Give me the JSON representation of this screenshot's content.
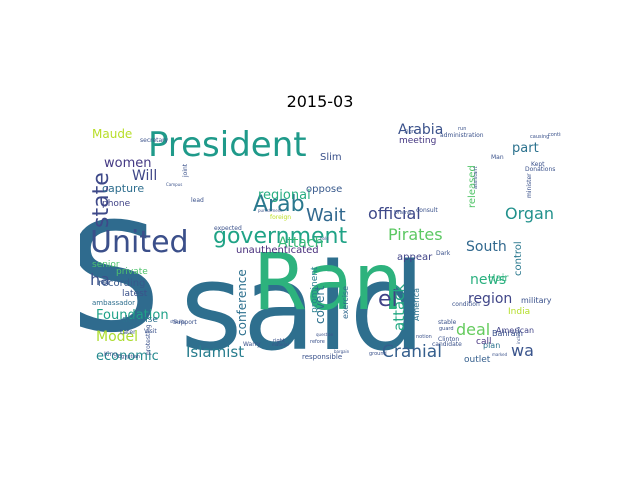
{
  "title": "2015-03",
  "words": [
    {
      "text": "said",
      "color": "#2e6f8e",
      "size": 120,
      "rot": 0
    },
    {
      "text": "S",
      "color": "#2f6b8e",
      "size": 150,
      "rot": 0
    },
    {
      "text": "Ran",
      "color": "#2db27d",
      "size": 78,
      "rot": 0
    },
    {
      "text": "President",
      "color": "#1f9a8a",
      "size": 34,
      "rot": 0
    },
    {
      "text": "United",
      "color": "#3b4f8a",
      "size": 30,
      "rot": 0
    },
    {
      "text": "government",
      "color": "#20a386",
      "size": 22,
      "rot": 0
    },
    {
      "text": "Arab",
      "color": "#2a788e",
      "size": 22,
      "rot": 0
    },
    {
      "text": "state",
      "color": "#3e4989",
      "size": 22,
      "rot": 270
    },
    {
      "text": "el",
      "color": "#404387",
      "size": 22,
      "rot": 0
    },
    {
      "text": "Wait",
      "color": "#31688e",
      "size": 18,
      "rot": 0
    },
    {
      "text": "official",
      "color": "#3e4989",
      "size": 16,
      "rot": 0
    },
    {
      "text": "Pirates",
      "color": "#5cc863",
      "size": 16,
      "rot": 0
    },
    {
      "text": "Organ",
      "color": "#21918c",
      "size": 16,
      "rot": 0
    },
    {
      "text": "Arabia",
      "color": "#3b528b",
      "size": 14,
      "rot": 0
    },
    {
      "text": "part",
      "color": "#2c728e",
      "size": 13,
      "rot": 0
    },
    {
      "text": "women",
      "color": "#443983",
      "size": 13,
      "rot": 0
    },
    {
      "text": "Will",
      "color": "#3f4788",
      "size": 14,
      "rot": 0
    },
    {
      "text": "regional",
      "color": "#27ad81",
      "size": 13,
      "rot": 0
    },
    {
      "text": "Attach",
      "color": "#38b977",
      "size": 14,
      "rot": 0
    },
    {
      "text": "Cranial",
      "color": "#355f8d",
      "size": 17,
      "rot": 0
    },
    {
      "text": "Islamist",
      "color": "#287d8e",
      "size": 15,
      "rot": 0
    },
    {
      "text": "Foundation",
      "color": "#1fa188",
      "size": 13,
      "rot": 0
    },
    {
      "text": "Model",
      "color": "#addc30",
      "size": 14,
      "rot": 0
    },
    {
      "text": "economic",
      "color": "#23898e",
      "size": 13,
      "rot": 0
    },
    {
      "text": "deal",
      "color": "#65cb5e",
      "size": 16,
      "rot": 0
    },
    {
      "text": "wa",
      "color": "#3a548c",
      "size": 16,
      "rot": 0
    },
    {
      "text": "news",
      "color": "#2ab07f",
      "size": 14,
      "rot": 0
    },
    {
      "text": "South",
      "color": "#31688e",
      "size": 14,
      "rot": 0
    },
    {
      "text": "region",
      "color": "#404688",
      "size": 14,
      "rot": 0
    },
    {
      "text": "attack",
      "color": "#23a983",
      "size": 15,
      "rot": 270
    },
    {
      "text": "covert",
      "color": "#2d708e",
      "size": 12,
      "rot": 270
    },
    {
      "text": "conference",
      "color": "#2d708e",
      "size": 12,
      "rot": 270
    },
    {
      "text": "ha",
      "color": "#3b528b",
      "size": 16,
      "rot": 0
    },
    {
      "text": "capture",
      "color": "#2e6e8e",
      "size": 11,
      "rot": 0
    },
    {
      "text": "Maude",
      "color": "#b8de29",
      "size": 12,
      "rot": 0
    },
    {
      "text": "recording",
      "color": "#38598c",
      "size": 10,
      "rot": 0
    },
    {
      "text": "unauthenticated",
      "color": "#472d7b",
      "size": 10,
      "rot": 0
    },
    {
      "text": "oppose",
      "color": "#38598c",
      "size": 10,
      "rot": 0
    },
    {
      "text": "Slim",
      "color": "#3b528b",
      "size": 10,
      "rot": 0
    },
    {
      "text": "released",
      "color": "#52c569",
      "size": 10,
      "rot": 270
    },
    {
      "text": "appear",
      "color": "#404387",
      "size": 10,
      "rot": 0
    },
    {
      "text": "control",
      "color": "#2a788e",
      "size": 10,
      "rot": 270
    },
    {
      "text": "meeting",
      "color": "#453781",
      "size": 9,
      "rot": 0
    },
    {
      "text": "Hair",
      "color": "#2db27d",
      "size": 10,
      "rot": 0
    },
    {
      "text": "senior",
      "color": "#4ac16d",
      "size": 9,
      "rot": 0
    },
    {
      "text": "private",
      "color": "#4ec36b",
      "size": 9,
      "rot": 0
    },
    {
      "text": "latest",
      "color": "#3b528b",
      "size": 9,
      "rot": 0
    },
    {
      "text": "defense",
      "color": "#2d708e",
      "size": 9,
      "rot": 0
    },
    {
      "text": "phone",
      "color": "#414487",
      "size": 9,
      "rot": 0
    },
    {
      "text": "India",
      "color": "#b5de2b",
      "size": 9,
      "rot": 0
    },
    {
      "text": "call",
      "color": "#46337f",
      "size": 9,
      "rot": 0
    },
    {
      "text": "outlet",
      "color": "#355f8d",
      "size": 9,
      "rot": 0
    },
    {
      "text": "Bahrain",
      "color": "#3b528b",
      "size": 8,
      "rot": 0
    },
    {
      "text": "American",
      "color": "#414487",
      "size": 8,
      "rot": 0
    },
    {
      "text": "military",
      "color": "#3b528b",
      "size": 8,
      "rot": 0
    },
    {
      "text": "plan",
      "color": "#2c728e",
      "size": 8,
      "rot": 0
    },
    {
      "text": "exercise",
      "color": "#31688e",
      "size": 8,
      "rot": 270
    },
    {
      "text": "prominent",
      "color": "#277f8e",
      "size": 9,
      "rot": 270
    },
    {
      "text": "America",
      "color": "#2c728e",
      "size": 8,
      "rot": 270
    },
    {
      "text": "ambassador",
      "color": "#2e6e8e",
      "size": 7,
      "rot": 0
    },
    {
      "text": "responsible",
      "color": "#3b528b",
      "size": 7,
      "rot": 0
    },
    {
      "text": "administration",
      "color": "#3b528b",
      "size": 6,
      "rot": 0
    },
    {
      "text": "secretary",
      "color": "#3b528b",
      "size": 6,
      "rot": 0
    },
    {
      "text": "minister",
      "color": "#3b528b",
      "size": 6,
      "rot": 270
    },
    {
      "text": "candidate",
      "color": "#3b528b",
      "size": 6,
      "rot": 0
    },
    {
      "text": "Clinton",
      "color": "#3b528b",
      "size": 6,
      "rot": 0
    },
    {
      "text": "Kept",
      "color": "#3b528b",
      "size": 6,
      "rot": 0
    },
    {
      "text": "Donations",
      "color": "#3b528b",
      "size": 6,
      "rot": 0
    },
    {
      "text": "Dark",
      "color": "#3b528b",
      "size": 6,
      "rot": 0
    },
    {
      "text": "stable",
      "color": "#3b528b",
      "size": 6,
      "rot": 0
    },
    {
      "text": "joint",
      "color": "#3b528b",
      "size": 6,
      "rot": 270
    },
    {
      "text": "condition",
      "color": "#3b528b",
      "size": 6,
      "rot": 0
    },
    {
      "text": "consult",
      "color": "#3b528b",
      "size": 6,
      "rot": 0
    },
    {
      "text": "expected",
      "color": "#3b528b",
      "size": 6,
      "rot": 0
    },
    {
      "text": "foreign",
      "color": "#bddf26",
      "size": 6,
      "rot": 0
    },
    {
      "text": "Later",
      "color": "#3b528b",
      "size": 6,
      "rot": 0
    },
    {
      "text": "Visit",
      "color": "#3b528b",
      "size": 6,
      "rot": 0
    },
    {
      "text": "Support",
      "color": "#3b528b",
      "size": 6,
      "rot": 0
    },
    {
      "text": "King",
      "color": "#3b528b",
      "size": 6,
      "rot": 0
    },
    {
      "text": "Warry",
      "color": "#3b528b",
      "size": 6,
      "rot": 0
    },
    {
      "text": "protesting",
      "color": "#3b528b",
      "size": 6,
      "rot": 270
    },
    {
      "text": "Man",
      "color": "#3b528b",
      "size": 6,
      "rot": 0
    },
    {
      "text": "lead",
      "color": "#3b528b",
      "size": 6,
      "rot": 0
    },
    {
      "text": "guard",
      "color": "#3b528b",
      "size": 5,
      "rot": 0
    },
    {
      "text": "Palmer",
      "color": "#3b528b",
      "size": 5,
      "rot": 0
    },
    {
      "text": "assistant",
      "color": "#3b528b",
      "size": 5,
      "rot": 270
    },
    {
      "text": "continued",
      "color": "#3b528b",
      "size": 5,
      "rot": 0
    },
    {
      "text": "causing",
      "color": "#3b528b",
      "size": 5,
      "rot": 0
    },
    {
      "text": "right",
      "color": "#3b528b",
      "size": 5,
      "rot": 0
    },
    {
      "text": "Egyptian",
      "color": "#3b528b",
      "size": 5,
      "rot": 0
    },
    {
      "text": "refore",
      "color": "#3b528b",
      "size": 5,
      "rot": 0
    },
    {
      "text": "Drama",
      "color": "#3b528b",
      "size": 5,
      "rot": 0
    },
    {
      "text": "challenge",
      "color": "#3b528b",
      "size": 5,
      "rot": 0
    },
    {
      "text": "notion",
      "color": "#3b528b",
      "size": 5,
      "rot": 0
    },
    {
      "text": "ground",
      "color": "#3b528b",
      "size": 5,
      "rot": 0
    },
    {
      "text": "Sign",
      "color": "#3b528b",
      "size": 5,
      "rot": 0
    },
    {
      "text": "run",
      "color": "#3b528b",
      "size": 5,
      "rot": 0
    },
    {
      "text": "represented",
      "color": "#3b528b",
      "size": 4,
      "rot": 0
    },
    {
      "text": "bargain",
      "color": "#3b528b",
      "size": 4,
      "rot": 0
    },
    {
      "text": "Campus",
      "color": "#3b528b",
      "size": 4,
      "rot": 0
    },
    {
      "text": "pledge",
      "color": "#3b528b",
      "size": 4,
      "rot": 0
    },
    {
      "text": "dependence",
      "color": "#3b528b",
      "size": 4,
      "rot": 0
    },
    {
      "text": "punishment",
      "color": "#3b528b",
      "size": 4,
      "rot": 0
    },
    {
      "text": "included",
      "color": "#3b528b",
      "size": 4,
      "rot": 270
    },
    {
      "text": "Embodiment",
      "color": "#3b528b",
      "size": 4,
      "rot": 0
    },
    {
      "text": "balance",
      "color": "#3b528b",
      "size": 4,
      "rot": 0
    },
    {
      "text": "stability",
      "color": "#3b528b",
      "size": 4,
      "rot": 0
    },
    {
      "text": "material",
      "color": "#3b528b",
      "size": 4,
      "rot": 0
    },
    {
      "text": "question",
      "color": "#3b528b",
      "size": 4,
      "rot": 0
    },
    {
      "text": "marked",
      "color": "#3b528b",
      "size": 4,
      "rot": 0
    },
    {
      "text": "hold",
      "color": "#3b528b",
      "size": 4,
      "rot": 0
    }
  ]
}
